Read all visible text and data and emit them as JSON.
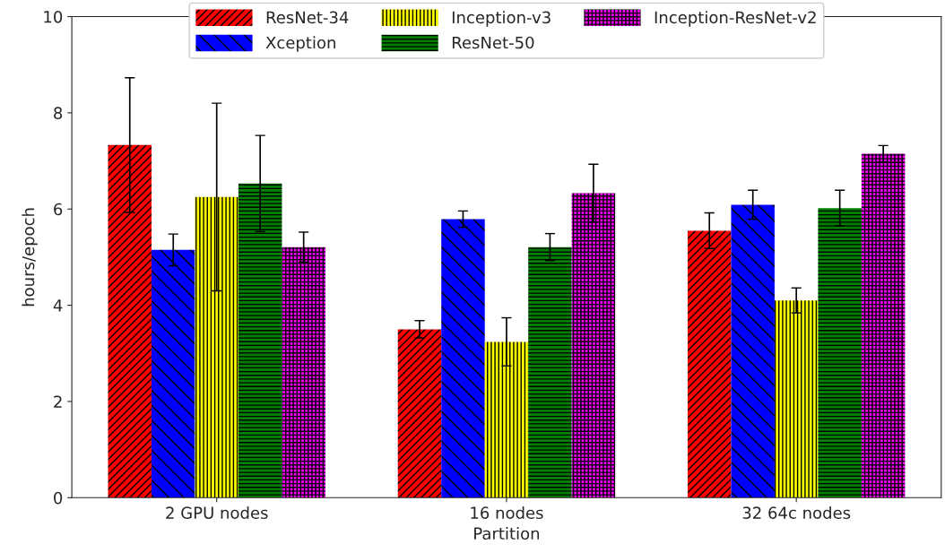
{
  "chart_data": {
    "type": "bar",
    "xlabel": "Partition",
    "ylabel": "hours/epoch",
    "categories": [
      "2 GPU nodes",
      "16 nodes",
      "32 64c nodes"
    ],
    "series": [
      {
        "name": "ResNet-34",
        "color": "#ff0000",
        "values": [
          7.33,
          3.5,
          5.55
        ],
        "errors": [
          1.4,
          0.18,
          0.37
        ]
      },
      {
        "name": "Xception",
        "color": "#0000ff",
        "values": [
          5.15,
          5.79,
          6.09
        ],
        "errors": [
          0.33,
          0.17,
          0.3
        ]
      },
      {
        "name": "Inception-v3",
        "color": "#ffff00",
        "values": [
          6.25,
          3.24,
          4.1
        ],
        "errors": [
          1.95,
          0.5,
          0.26
        ]
      },
      {
        "name": "ResNet-50",
        "color": "#008000",
        "values": [
          6.53,
          5.21,
          6.02
        ],
        "errors": [
          1.0,
          0.28,
          0.37
        ]
      },
      {
        "name": "Inception-ResNet-v2",
        "color": "#ff00ff",
        "values": [
          5.21,
          6.33,
          7.15
        ],
        "errors": [
          0.31,
          0.6,
          0.17
        ]
      }
    ],
    "ylim": [
      0,
      10
    ],
    "yticks": [
      0,
      2,
      4,
      6,
      8,
      10
    ],
    "grid": false,
    "legend": "top"
  }
}
